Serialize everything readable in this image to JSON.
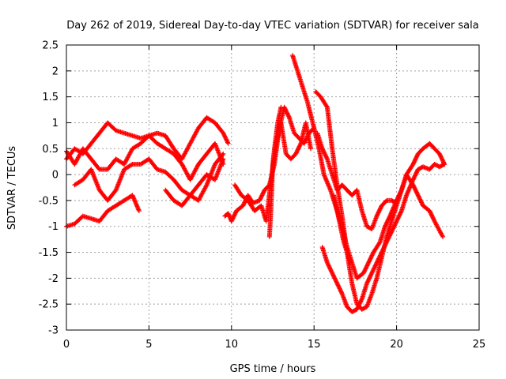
{
  "chart_data": {
    "type": "scatter",
    "title": "Day 262 of 2019, Sidereal Day-to-day VTEC variation (SDTVAR) for receiver sala",
    "xlabel": "GPS time / hours",
    "ylabel": "SDTVAR / TECUs",
    "xlim": [
      0,
      25
    ],
    "ylim": [
      -3,
      2.5
    ],
    "xticks": [
      "0",
      "5",
      "10",
      "15",
      "20",
      "25"
    ],
    "yticks": [
      "2.5",
      "2",
      "1.5",
      "1",
      "0.5",
      "0",
      "-0.5",
      "-1",
      "-1.5",
      "-2",
      "-2.5",
      "-3"
    ],
    "grid": true,
    "marker": "plus",
    "color": "#ff0000",
    "series": [
      {
        "x": [
          0,
          0.5,
          1,
          1.5,
          2,
          2.5,
          3,
          3.5,
          4,
          4.5,
          5,
          5.5,
          6,
          6.5,
          7,
          7.5,
          8,
          8.5,
          9,
          9.5,
          9.8
        ],
        "y": [
          0.3,
          0.5,
          0.4,
          0.6,
          0.8,
          1.0,
          0.85,
          0.8,
          0.75,
          0.7,
          0.75,
          0.8,
          0.75,
          0.5,
          0.3,
          0.6,
          0.9,
          1.1,
          1.0,
          0.8,
          0.6
        ]
      },
      {
        "x": [
          0,
          0.5,
          1,
          1.5,
          2,
          2.5,
          3,
          3.5,
          4,
          4.5,
          5,
          5.5,
          6,
          6.5,
          7,
          7.5,
          8,
          8.5,
          9,
          9.5
        ],
        "y": [
          0.45,
          0.2,
          0.5,
          0.3,
          0.1,
          0.1,
          0.3,
          0.2,
          0.5,
          0.6,
          0.75,
          0.6,
          0.5,
          0.4,
          0.2,
          -0.1,
          0.2,
          0.4,
          0.6,
          0.2
        ]
      },
      {
        "x": [
          0.5,
          1,
          1.5,
          2,
          2.5,
          3,
          3.5,
          4,
          4.5,
          5,
          5.5,
          6,
          6.5,
          7,
          7.5,
          8,
          8.5,
          9,
          9.5
        ],
        "y": [
          -0.2,
          -0.1,
          0.1,
          -0.3,
          -0.5,
          -0.3,
          0.1,
          0.2,
          0.2,
          0.3,
          0.1,
          0.05,
          -0.1,
          -0.3,
          -0.4,
          -0.5,
          -0.2,
          0.2,
          0.4
        ]
      },
      {
        "x": [
          0,
          0.5,
          1,
          1.5,
          2,
          2.5,
          3,
          3.5,
          4,
          4.4
        ],
        "y": [
          -1.0,
          -0.95,
          -0.8,
          -0.85,
          -0.9,
          -0.7,
          -0.6,
          -0.5,
          -0.4,
          -0.7
        ]
      },
      {
        "x": [
          6,
          6.5,
          7,
          7.5,
          8,
          8.5,
          9,
          9.5
        ],
        "y": [
          -0.3,
          -0.5,
          -0.6,
          -0.4,
          -0.2,
          0.0,
          -0.1,
          0.3
        ]
      },
      {
        "x": [
          9.6,
          9.8,
          10,
          10.3,
          10.7,
          11,
          11.3,
          11.7,
          12,
          12.3,
          12.6,
          12.9,
          13.2,
          13.5,
          13.8,
          14.1,
          14.4,
          14.7,
          15
        ],
        "y": [
          -0.8,
          -0.75,
          -0.9,
          -0.7,
          -0.6,
          -0.4,
          -0.55,
          -0.5,
          -0.3,
          -0.2,
          0.2,
          0.9,
          1.3,
          1.1,
          0.8,
          0.7,
          0.6,
          0.8,
          0.9
        ]
      },
      {
        "x": [
          10.2,
          10.6,
          11,
          11.4,
          11.8,
          12.1,
          12.4,
          12.7,
          13,
          13.3,
          13.6,
          13.9,
          14.2,
          14.5,
          14.8
        ],
        "y": [
          -0.2,
          -0.4,
          -0.5,
          -0.7,
          -0.6,
          -0.9,
          -0.1,
          0.6,
          1.0,
          0.4,
          0.3,
          0.4,
          0.6,
          1.0,
          0.5
        ]
      },
      {
        "x": [
          12.3,
          12.4,
          12.5,
          12.6,
          12.8,
          13
        ],
        "y": [
          -1.2,
          -0.6,
          0.2,
          0.5,
          1.0,
          1.3
        ]
      },
      {
        "x": [
          13.7,
          14,
          14.3,
          14.6,
          15,
          15.3,
          15.6,
          16,
          16.3,
          16.6,
          17,
          17.3,
          17.6,
          18,
          18.3,
          18.6,
          19,
          19.3,
          19.6,
          20,
          20.3,
          20.6,
          21,
          21.3,
          21.6,
          22,
          22.3,
          22.8
        ],
        "y": [
          2.3,
          2.0,
          1.7,
          1.4,
          0.9,
          0.5,
          0.0,
          -0.3,
          -0.6,
          -0.9,
          -1.4,
          -1.7,
          -2.0,
          -1.9,
          -1.7,
          -1.5,
          -1.3,
          -1.0,
          -0.8,
          -0.5,
          -0.3,
          0.0,
          -0.2,
          -0.4,
          -0.6,
          -0.7,
          -0.9,
          -1.2
        ]
      },
      {
        "x": [
          15.1,
          15.4,
          15.8,
          16.1,
          16.4,
          16.7,
          17,
          17.3,
          17.6,
          17.9,
          18.2,
          18.5,
          18.8,
          19.1,
          19.4,
          19.7,
          20,
          20.3,
          20.6,
          21,
          21.3,
          21.6,
          22,
          22.3,
          22.6,
          22.9
        ],
        "y": [
          1.6,
          1.5,
          1.3,
          0.5,
          -0.2,
          -0.8,
          -1.5,
          -2.1,
          -2.5,
          -2.6,
          -2.55,
          -2.3,
          -2.0,
          -1.6,
          -1.2,
          -0.9,
          -0.6,
          -0.3,
          0.0,
          0.2,
          0.4,
          0.5,
          0.6,
          0.5,
          0.4,
          0.2
        ]
      },
      {
        "x": [
          15.5,
          15.8,
          16.1,
          16.4,
          16.7,
          17,
          17.3,
          17.6,
          17.9,
          18.2,
          18.5,
          18.8,
          19.1,
          19.4,
          19.7,
          20,
          20.3,
          20.6,
          21,
          21.3,
          21.6,
          22,
          22.3,
          22.6,
          22.9
        ],
        "y": [
          -1.4,
          -1.7,
          -1.9,
          -2.1,
          -2.3,
          -2.55,
          -2.65,
          -2.6,
          -2.4,
          -2.1,
          -1.9,
          -1.7,
          -1.5,
          -1.3,
          -1.1,
          -0.9,
          -0.7,
          -0.4,
          -0.1,
          0.1,
          0.15,
          0.1,
          0.2,
          0.15,
          0.2
        ]
      },
      {
        "x": [
          15.2,
          15.5,
          15.8,
          16.1,
          16.4,
          16.7,
          17,
          17.3,
          17.6,
          17.9,
          18.2,
          18.5,
          18.8,
          19.1,
          19.4,
          19.7,
          20
        ],
        "y": [
          0.8,
          0.5,
          0.3,
          0.0,
          -0.3,
          -0.2,
          -0.3,
          -0.4,
          -0.3,
          -0.7,
          -1.0,
          -1.05,
          -0.8,
          -0.6,
          -0.5,
          -0.5,
          -0.55
        ]
      },
      {
        "x": [
          16.2,
          16.4,
          16.6,
          16.8,
          17,
          17.2
        ],
        "y": [
          -0.4,
          -0.7,
          -1.0,
          -1.3,
          -1.5,
          -1.7
        ]
      }
    ]
  }
}
